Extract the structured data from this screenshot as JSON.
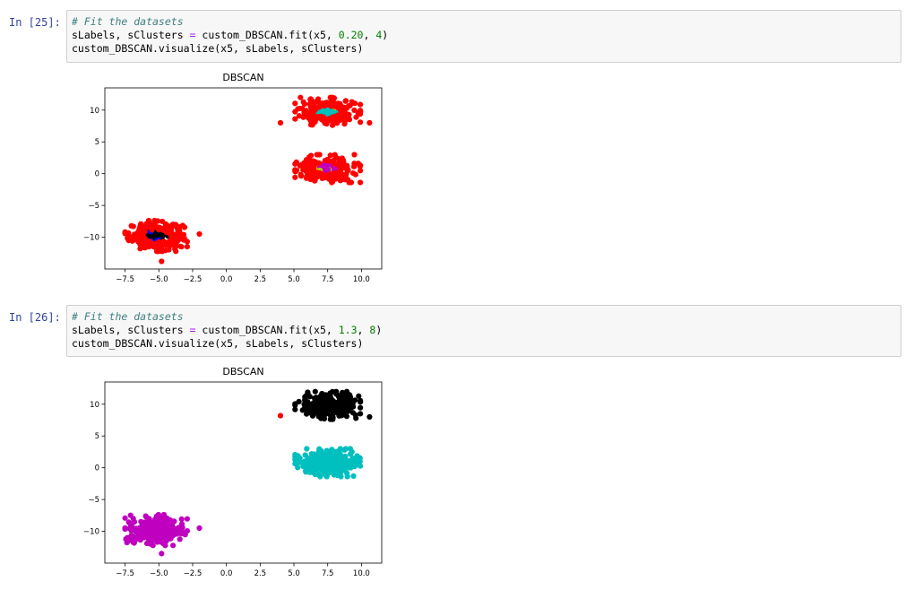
{
  "cells": [
    {
      "prompt": "In [25]:",
      "code": {
        "comment": "# Fit the datasets",
        "line2": {
          "before": "sLabels, sClusters ",
          "eq": "=",
          "call": " custom_DBSCAN.fit(x5, ",
          "arg1": "0.20",
          "sep": ", ",
          "arg2": "4",
          "end": ")"
        },
        "line3": "custom_DBSCAN.visualize(x5, sLabels, sClusters)"
      }
    },
    {
      "prompt": "In [26]:",
      "code": {
        "comment": "# Fit the datasets",
        "line2": {
          "before": "sLabels, sClusters ",
          "eq": "=",
          "call": " custom_DBSCAN.fit(x5, ",
          "arg1": "1.3",
          "sep": ", ",
          "arg2": "8",
          "end": ")"
        },
        "line3": "custom_DBSCAN.visualize(x5, sLabels, sClusters)"
      }
    }
  ],
  "colors": {
    "prompt": "#303f9f",
    "comment": "#408080",
    "number": "#008000",
    "operator": "#aa22ff",
    "noise": "#ff0000",
    "black": "#000000",
    "cyan": "#00bfbf",
    "magenta": "#bf00bf",
    "blue": "#0000ff",
    "yellow": "#bfbf00",
    "green": "#008000"
  },
  "chart_data": [
    {
      "type": "scatter",
      "title": "DBSCAN",
      "xlabel": "",
      "ylabel": "",
      "xlim": [
        -9.0,
        11.5
      ],
      "ylim": [
        -15.0,
        13.5
      ],
      "xticks": [
        -7.5,
        -5.0,
        -2.5,
        0.0,
        2.5,
        5.0,
        7.5,
        10.0
      ],
      "xtick_labels": [
        "−7.5",
        "−5.0",
        "−2.5",
        "0.0",
        "2.5",
        "5.0",
        "7.5",
        "10.0"
      ],
      "yticks": [
        10,
        5,
        0,
        -5,
        -10
      ],
      "ytick_labels": [
        "10",
        "5",
        "0",
        "−5",
        "−10"
      ],
      "blobs": [
        {
          "name": "bottom-left",
          "center": [
            -5.2,
            -9.8
          ],
          "spread": [
            1.0,
            1.05
          ],
          "count": 260
        },
        {
          "name": "top-right",
          "center": [
            7.5,
            9.8
          ],
          "spread": [
            1.05,
            0.95
          ],
          "count": 260
        },
        {
          "name": "middle-right",
          "center": [
            7.5,
            0.8
          ],
          "spread": [
            1.05,
            0.95
          ],
          "count": 260
        }
      ],
      "series": [
        {
          "name": "noise",
          "color": "#ff0000",
          "blobs": [
            "bottom-left",
            "top-right",
            "middle-right"
          ],
          "share": "outer"
        },
        {
          "name": "cluster-black",
          "color": "#000000",
          "blobs": [
            "bottom-left"
          ],
          "share": "core"
        },
        {
          "name": "cluster-cyan",
          "color": "#00bfbf",
          "blobs": [
            "top-right"
          ],
          "share": "core"
        },
        {
          "name": "cluster-magenta",
          "color": "#bf00bf",
          "blobs": [
            "middle-right"
          ],
          "share": "core"
        },
        {
          "name": "cluster-blue",
          "color": "#0000ff",
          "blobs": [
            "bottom-left",
            "top-right"
          ],
          "share": "core"
        },
        {
          "name": "cluster-yellow",
          "color": "#bfbf00",
          "blobs": [
            "top-right",
            "middle-right"
          ],
          "share": "core"
        }
      ],
      "outliers": [
        {
          "x": -2.0,
          "y": -9.5,
          "color": "#ff0000"
        },
        {
          "x": 4.0,
          "y": 8.0,
          "color": "#ff0000"
        },
        {
          "x": 10.6,
          "y": 8.0,
          "color": "#ff0000"
        },
        {
          "x": -4.8,
          "y": -13.8,
          "color": "#ff0000"
        }
      ]
    },
    {
      "type": "scatter",
      "title": "DBSCAN",
      "xlabel": "",
      "ylabel": "",
      "xlim": [
        -9.0,
        11.5
      ],
      "ylim": [
        -15.0,
        13.5
      ],
      "xticks": [
        -7.5,
        -5.0,
        -2.5,
        0.0,
        2.5,
        5.0,
        7.5,
        10.0
      ],
      "xtick_labels": [
        "−7.5",
        "−5.0",
        "−2.5",
        "0.0",
        "2.5",
        "5.0",
        "7.5",
        "10.0"
      ],
      "yticks": [
        10,
        5,
        0,
        -5,
        -10
      ],
      "ytick_labels": [
        "10",
        "5",
        "0",
        "−5",
        "−10"
      ],
      "blobs": [
        {
          "name": "bottom-left",
          "center": [
            -5.2,
            -9.8
          ],
          "spread": [
            1.0,
            1.05
          ],
          "count": 300
        },
        {
          "name": "top-right",
          "center": [
            7.5,
            9.8
          ],
          "spread": [
            1.05,
            0.95
          ],
          "count": 300
        },
        {
          "name": "middle-right",
          "center": [
            7.5,
            0.8
          ],
          "spread": [
            1.05,
            0.95
          ],
          "count": 300
        }
      ],
      "series": [
        {
          "name": "cluster-magenta",
          "color": "#bf00bf",
          "blobs": [
            "bottom-left"
          ],
          "share": "all"
        },
        {
          "name": "cluster-black",
          "color": "#000000",
          "blobs": [
            "top-right"
          ],
          "share": "all"
        },
        {
          "name": "cluster-cyan",
          "color": "#00bfbf",
          "blobs": [
            "middle-right"
          ],
          "share": "all"
        }
      ],
      "outliers": [
        {
          "x": -2.0,
          "y": -9.5,
          "color": "#bf00bf"
        },
        {
          "x": 4.0,
          "y": 8.2,
          "color": "#ff0000"
        },
        {
          "x": 10.6,
          "y": 8.0,
          "color": "#000000"
        },
        {
          "x": -4.8,
          "y": -13.5,
          "color": "#bf00bf"
        }
      ]
    }
  ]
}
